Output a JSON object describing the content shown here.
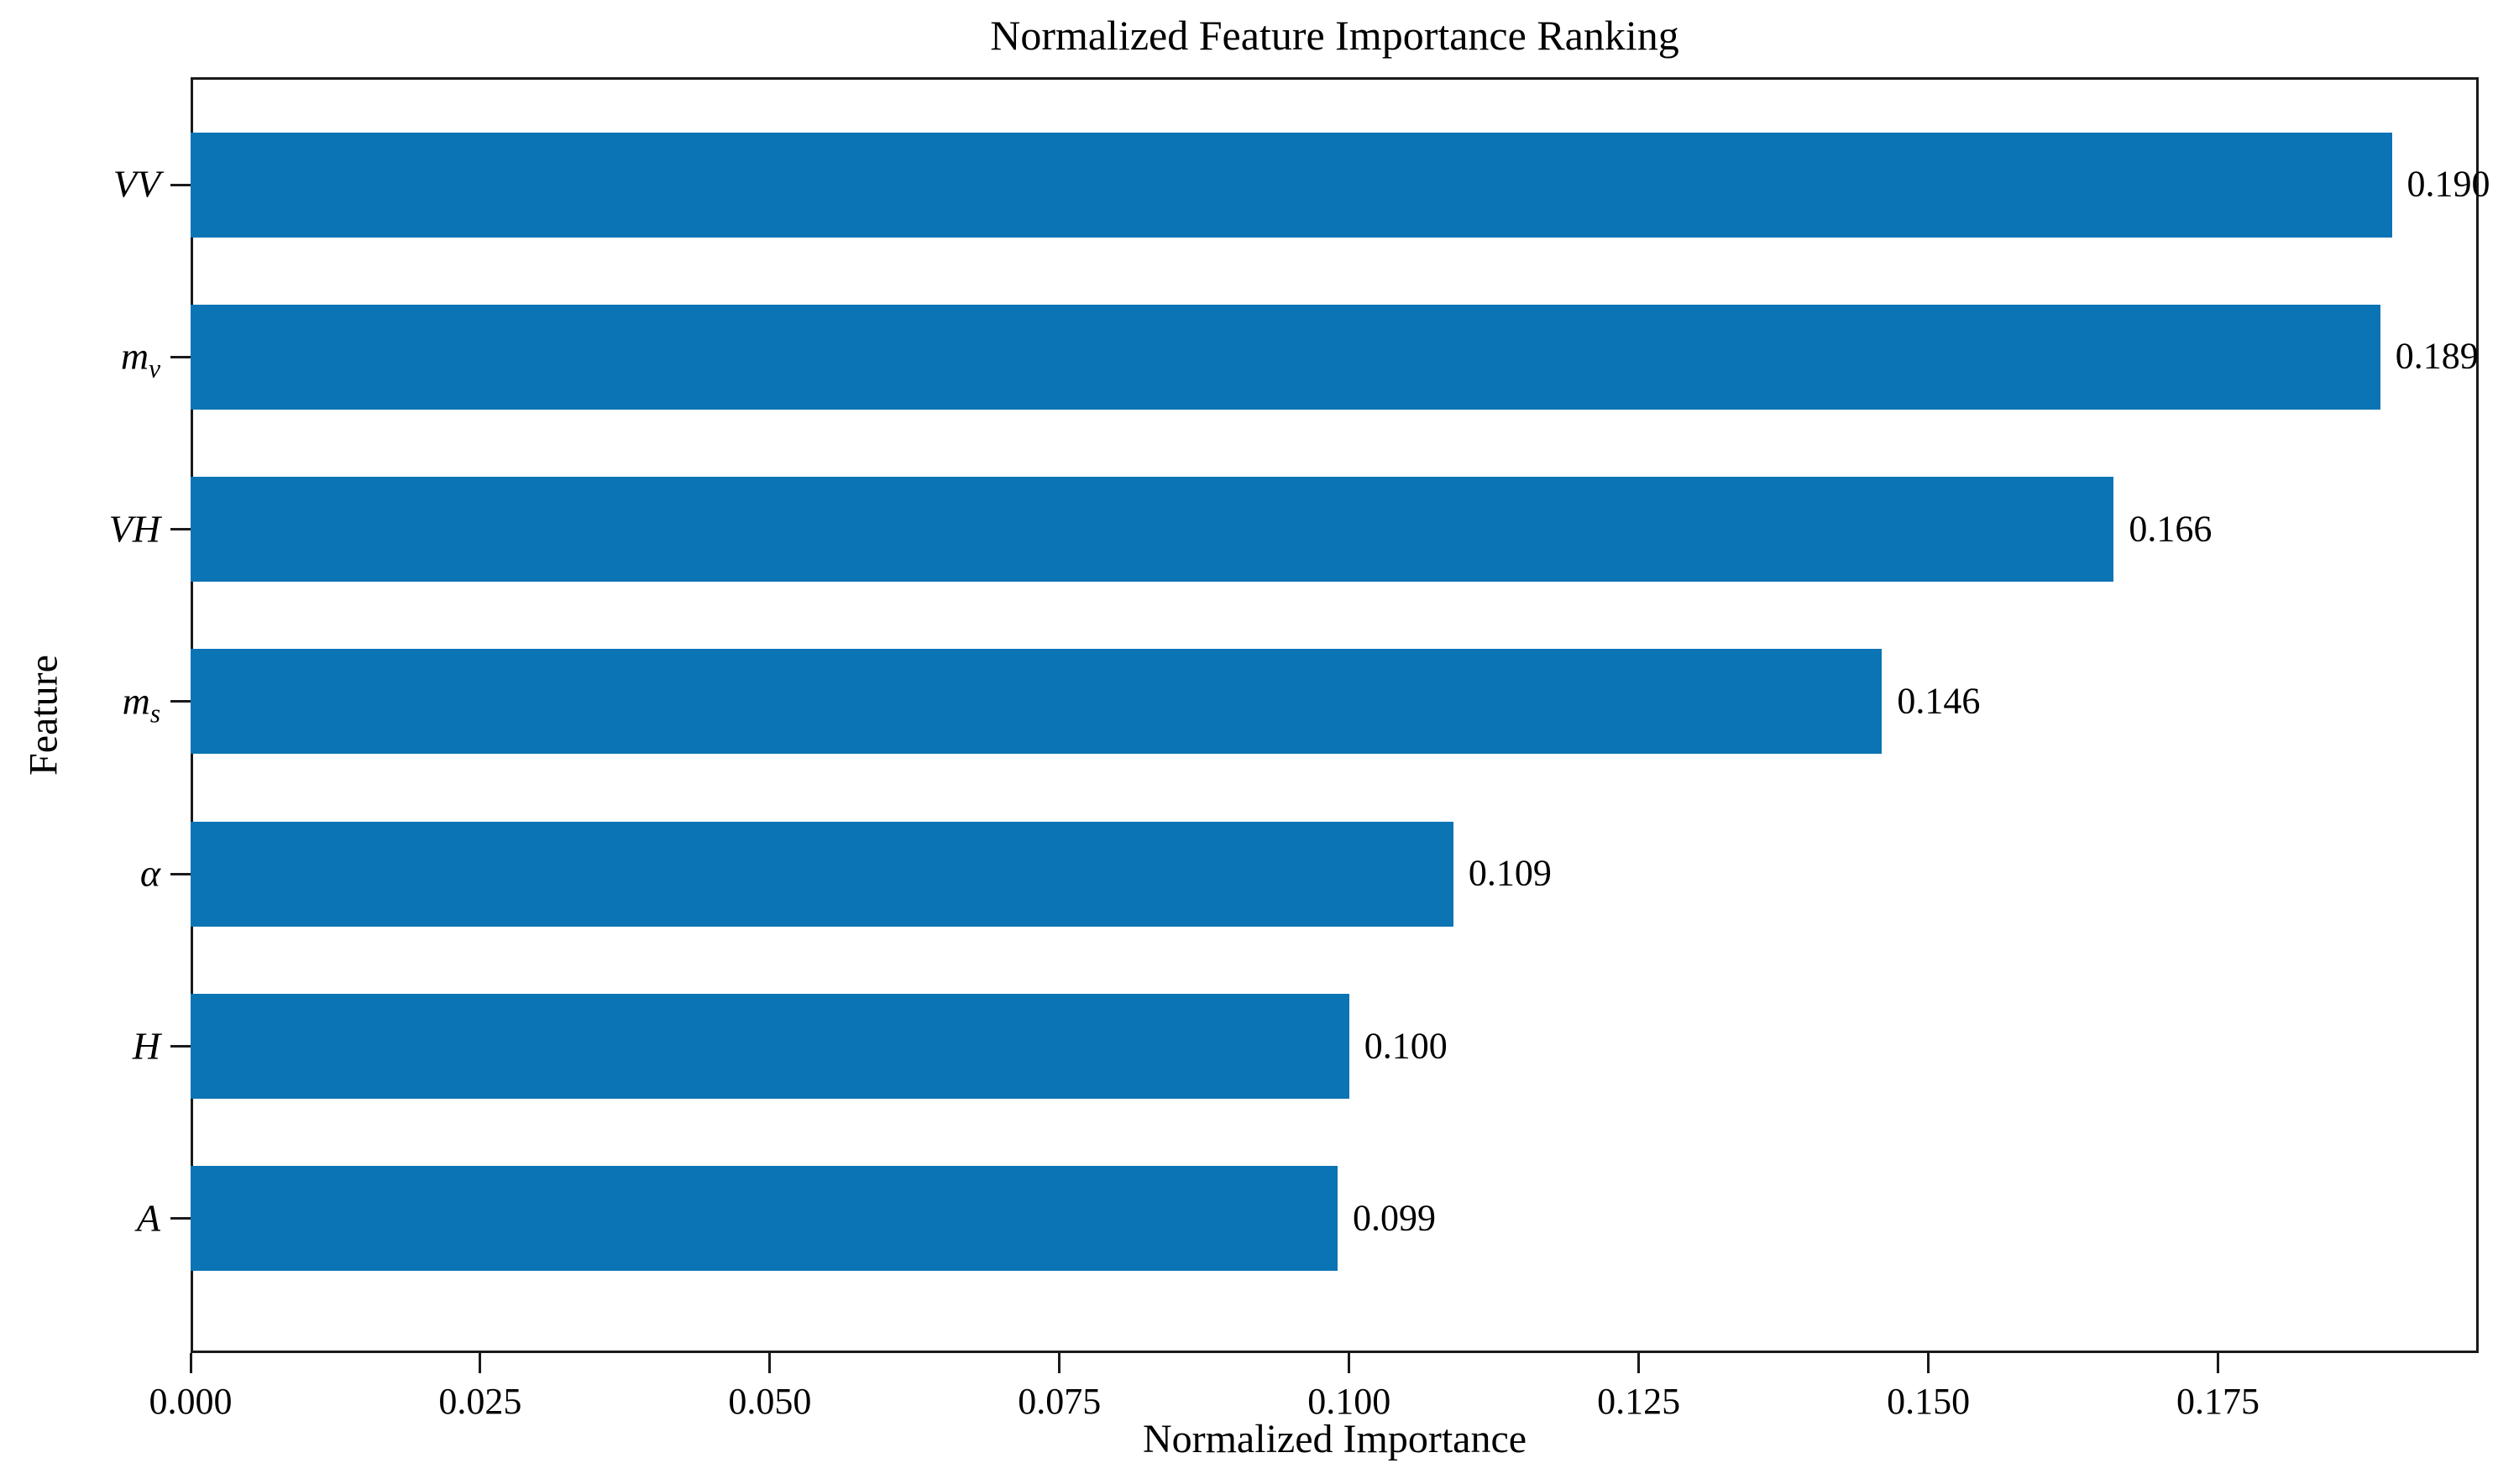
{
  "chart_data": {
    "type": "bar",
    "orientation": "horizontal",
    "title": "Normalized Feature Importance Ranking",
    "xlabel": "Normalized Importance",
    "ylabel": "Feature",
    "categories": [
      {
        "label": "VV",
        "sub": ""
      },
      {
        "label": "m",
        "sub": "v"
      },
      {
        "label": "VH",
        "sub": ""
      },
      {
        "label": "m",
        "sub": "s"
      },
      {
        "label": "α",
        "sub": ""
      },
      {
        "label": "H",
        "sub": ""
      },
      {
        "label": "A",
        "sub": ""
      }
    ],
    "values": [
      0.19,
      0.189,
      0.166,
      0.146,
      0.109,
      0.1,
      0.099
    ],
    "value_labels": [
      "0.190",
      "0.189",
      "0.166",
      "0.146",
      "0.109",
      "0.100",
      "0.099"
    ],
    "x_ticks": [
      "0.000",
      "0.025",
      "0.050",
      "0.075",
      "0.100",
      "0.125",
      "0.150",
      "0.175"
    ],
    "xlim": [
      0,
      0.1975
    ],
    "grid": false,
    "legend": false,
    "bar_color": "#0b74b4",
    "spine_color": "#1a1a1a",
    "text_color": "#000000"
  }
}
